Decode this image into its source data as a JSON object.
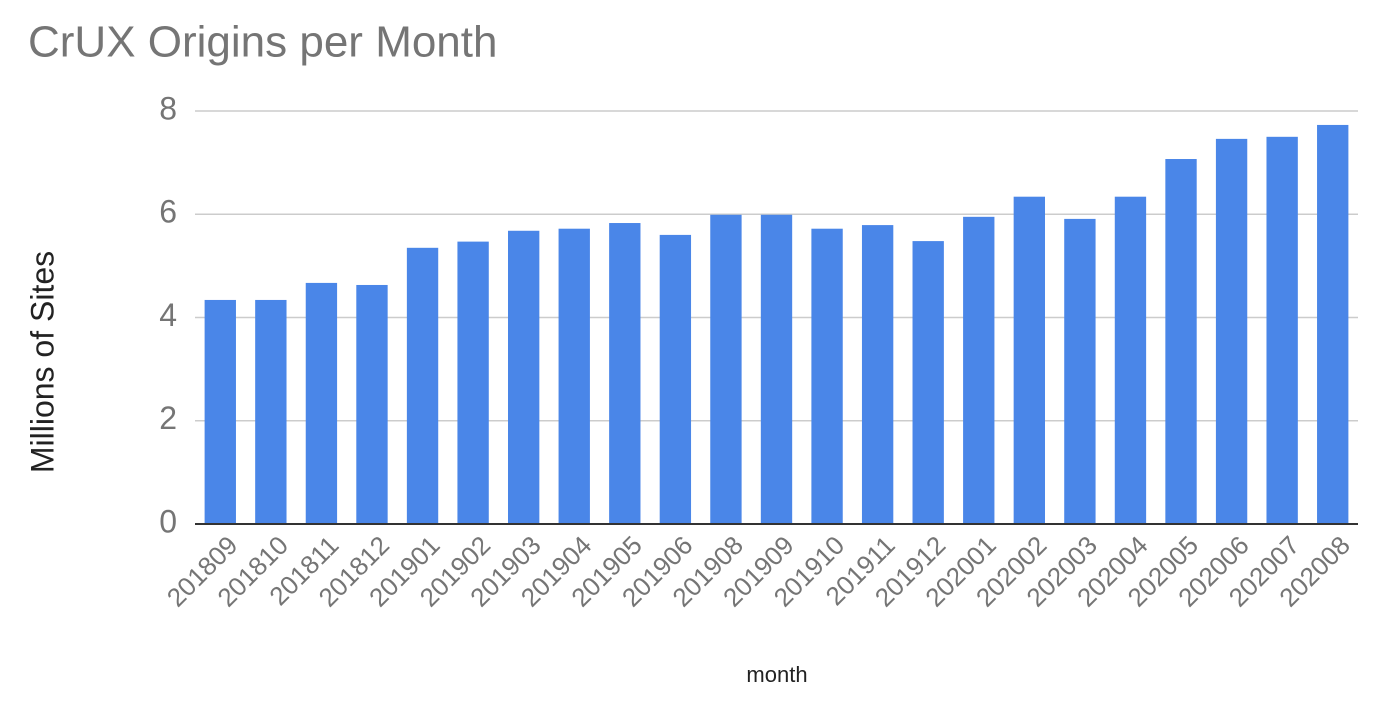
{
  "chart_data": {
    "type": "bar",
    "title": "CrUX Origins per Month",
    "x_label": "month",
    "y_label": "Millions of Sites",
    "categories": [
      "201809",
      "201810",
      "201811",
      "201812",
      "201901",
      "201902",
      "201903",
      "201904",
      "201905",
      "201906",
      "201908",
      "201909",
      "201910",
      "201911",
      "201912",
      "202001",
      "202002",
      "202003",
      "202004",
      "202005",
      "202006",
      "202007",
      "202008"
    ],
    "values": [
      4.34,
      4.34,
      4.67,
      4.63,
      5.35,
      5.47,
      5.68,
      5.72,
      5.83,
      5.6,
      5.99,
      5.99,
      5.72,
      5.79,
      5.48,
      5.95,
      6.34,
      5.91,
      6.34,
      7.07,
      7.46,
      7.5,
      7.73
    ],
    "color": "#4a86e8",
    "ylim": [
      0,
      8
    ],
    "yticks": [
      0,
      2,
      4,
      6,
      8
    ],
    "grid": true
  }
}
